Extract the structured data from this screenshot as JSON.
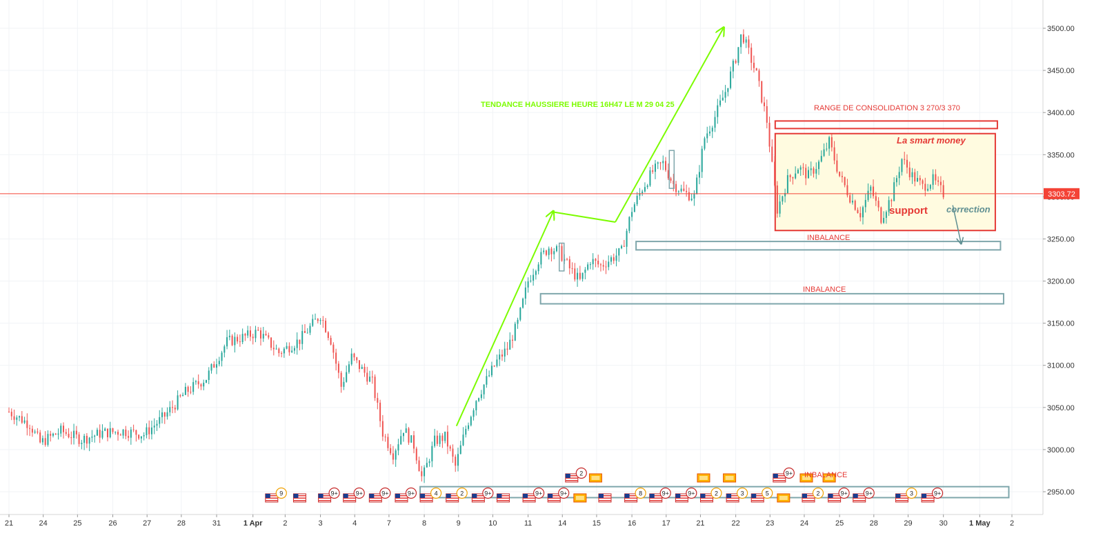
{
  "chart_data": {
    "type": "candlestick",
    "y_axis": {
      "min": 2920,
      "max": 3530,
      "ticks": [
        "3500.00",
        "3450.00",
        "3400.00",
        "3350.00",
        "3300.00",
        "3250.00",
        "3200.00",
        "3150.00",
        "3100.00",
        "3050.00",
        "3000.00",
        "2950.00"
      ],
      "tick_values": [
        3500,
        3450,
        3400,
        3350,
        3300,
        3250,
        3200,
        3150,
        3100,
        3050,
        3000,
        2950
      ]
    },
    "x_axis": {
      "labels": [
        {
          "t": 0.0,
          "text": "21"
        },
        {
          "t": 3.3,
          "text": "24"
        },
        {
          "t": 6.6,
          "text": "25"
        },
        {
          "t": 10.0,
          "text": "26"
        },
        {
          "t": 13.3,
          "text": "27"
        },
        {
          "t": 16.6,
          "text": "28"
        },
        {
          "t": 20.0,
          "text": "31"
        },
        {
          "t": 23.5,
          "text": "1 Apr"
        },
        {
          "t": 26.6,
          "text": "2"
        },
        {
          "t": 30.0,
          "text": "3"
        },
        {
          "t": 33.3,
          "text": "4"
        },
        {
          "t": 36.6,
          "text": "7"
        },
        {
          "t": 40.0,
          "text": "8"
        },
        {
          "t": 43.3,
          "text": "9"
        },
        {
          "t": 46.6,
          "text": "10"
        },
        {
          "t": 50.0,
          "text": "11"
        },
        {
          "t": 53.3,
          "text": "14"
        },
        {
          "t": 56.6,
          "text": "15"
        },
        {
          "t": 60.0,
          "text": "16"
        },
        {
          "t": 63.3,
          "text": "17"
        },
        {
          "t": 66.6,
          "text": "21"
        },
        {
          "t": 70.0,
          "text": "22"
        },
        {
          "t": 73.3,
          "text": "23"
        },
        {
          "t": 76.6,
          "text": "24"
        },
        {
          "t": 80.0,
          "text": "25"
        },
        {
          "t": 83.3,
          "text": "28"
        },
        {
          "t": 86.6,
          "text": "29"
        },
        {
          "t": 90.0,
          "text": "30"
        },
        {
          "t": 93.5,
          "text": "1 May"
        },
        {
          "t": 96.6,
          "text": "2"
        }
      ]
    },
    "price_path": [
      [
        0,
        3045
      ],
      [
        2,
        3030
      ],
      [
        3,
        3008
      ],
      [
        5,
        3022
      ],
      [
        7,
        3012
      ],
      [
        9,
        3020
      ],
      [
        11,
        3022
      ],
      [
        13,
        3018
      ],
      [
        15,
        3040
      ],
      [
        17,
        3068
      ],
      [
        19,
        3085
      ],
      [
        21,
        3128
      ],
      [
        23,
        3135
      ],
      [
        24,
        3140
      ],
      [
        26,
        3115
      ],
      [
        28,
        3130
      ],
      [
        30,
        3160
      ],
      [
        31,
        3130
      ],
      [
        32,
        3075
      ],
      [
        33,
        3110
      ],
      [
        35,
        3080
      ],
      [
        36,
        3020
      ],
      [
        37,
        2995
      ],
      [
        38,
        3025
      ],
      [
        39,
        3005
      ],
      [
        39.8,
        2965
      ],
      [
        41,
        3010
      ],
      [
        42,
        3015
      ],
      [
        43,
        2980
      ],
      [
        44,
        3025
      ],
      [
        45,
        3060
      ],
      [
        47,
        3105
      ],
      [
        48,
        3120
      ],
      [
        49,
        3150
      ],
      [
        50,
        3200
      ],
      [
        51,
        3225
      ],
      [
        52,
        3240
      ],
      [
        53,
        3235
      ],
      [
        54,
        3215
      ],
      [
        55,
        3200
      ],
      [
        56,
        3225
      ],
      [
        57,
        3218
      ],
      [
        59,
        3235
      ],
      [
        60,
        3285
      ],
      [
        61,
        3310
      ],
      [
        62,
        3330
      ],
      [
        63,
        3340
      ],
      [
        64,
        3315
      ],
      [
        65,
        3305
      ],
      [
        66,
        3300
      ],
      [
        67,
        3370
      ],
      [
        68,
        3395
      ],
      [
        69,
        3425
      ],
      [
        70,
        3465
      ],
      [
        70.6,
        3495
      ],
      [
        71,
        3480
      ],
      [
        72,
        3445
      ],
      [
        73,
        3390
      ],
      [
        73.6,
        3325
      ],
      [
        74,
        3285
      ],
      [
        75,
        3320
      ],
      [
        76,
        3335
      ],
      [
        77,
        3325
      ],
      [
        78,
        3340
      ],
      [
        79,
        3365
      ],
      [
        80,
        3325
      ],
      [
        81,
        3300
      ],
      [
        82,
        3280
      ],
      [
        83,
        3310
      ],
      [
        84,
        3275
      ],
      [
        85,
        3300
      ],
      [
        86,
        3345
      ],
      [
        87,
        3325
      ],
      [
        88,
        3312
      ],
      [
        89,
        3320
      ],
      [
        90,
        3303.72
      ]
    ],
    "current_price": {
      "value": 3303.72,
      "label": "3303.72"
    },
    "annotations": {
      "uptrend_text": "TENDANCE HAUSSIERE HEURE 16H47 LE M 29 04 25",
      "range_text": "RANGE DE CONSOLIDATION 3 270/3 370",
      "smart_money": "La smart money",
      "support": "support",
      "correction": "correction",
      "inbalance_1": "INBALANCE",
      "inbalance_2": "INBALANCE",
      "inbalance_3": "INBALANCE"
    },
    "zones": [
      {
        "kind": "range-box",
        "t1": 73.8,
        "t2": 95.0,
        "y1": 3260,
        "y2": 3375
      },
      {
        "kind": "range-top-bar",
        "t1": 73.8,
        "t2": 95.2,
        "y1": 3381,
        "y2": 3390
      },
      {
        "kind": "inbalance-1",
        "t1": 60.4,
        "t2": 95.5,
        "y1": 3237,
        "y2": 3247
      },
      {
        "kind": "inbalance-2",
        "t1": 51.2,
        "t2": 95.8,
        "y1": 3173,
        "y2": 3185
      },
      {
        "kind": "inbalance-3",
        "t1": 39.6,
        "t2": 96.3,
        "y1": 2943,
        "y2": 2956
      }
    ],
    "arrows": [
      {
        "kind": "up-1",
        "points": [
          [
            43.1,
            3028
          ],
          [
            52.4,
            3282
          ]
        ]
      },
      {
        "kind": "down-pullback",
        "points": [
          [
            52.4,
            3282
          ],
          [
            58.4,
            3270
          ]
        ]
      },
      {
        "kind": "up-2",
        "points": [
          [
            58.4,
            3270
          ],
          [
            68.8,
            3500
          ]
        ]
      },
      {
        "kind": "correction",
        "points": [
          [
            90.9,
            3290
          ],
          [
            91.7,
            3245
          ]
        ]
      }
    ],
    "event_markers": [
      {
        "t": 25.3,
        "row": "low",
        "icon": "us-flag",
        "badge": "9"
      },
      {
        "t": 28.0,
        "row": "low",
        "icon": "us-flag",
        "badge": ""
      },
      {
        "t": 30.4,
        "row": "low",
        "icon": "us-flag",
        "badge": "9+"
      },
      {
        "t": 32.8,
        "row": "low",
        "icon": "us-flag",
        "badge": "9+"
      },
      {
        "t": 35.3,
        "row": "low",
        "icon": "us-flag",
        "badge": "9+"
      },
      {
        "t": 37.8,
        "row": "low",
        "icon": "us-flag",
        "badge": "9+"
      },
      {
        "t": 40.2,
        "row": "low",
        "icon": "us-flag",
        "badge": "4"
      },
      {
        "t": 42.7,
        "row": "low",
        "icon": "us-flag",
        "badge": "2"
      },
      {
        "t": 45.2,
        "row": "low",
        "icon": "us-flag",
        "badge": "9+"
      },
      {
        "t": 47.6,
        "row": "low",
        "icon": "us-flag",
        "badge": ""
      },
      {
        "t": 50.1,
        "row": "low",
        "icon": "us-flag",
        "badge": "9+"
      },
      {
        "t": 52.5,
        "row": "low",
        "icon": "us-flag",
        "badge": "9+"
      },
      {
        "t": 55.0,
        "row": "low",
        "icon": "cn-flag",
        "badge": ""
      },
      {
        "t": 57.4,
        "row": "low",
        "icon": "us-flag",
        "badge": ""
      },
      {
        "t": 59.9,
        "row": "low",
        "icon": "us-flag",
        "badge": "8"
      },
      {
        "t": 62.3,
        "row": "low",
        "icon": "us-flag",
        "badge": "9+"
      },
      {
        "t": 64.8,
        "row": "low",
        "icon": "us-flag",
        "badge": "9+"
      },
      {
        "t": 67.2,
        "row": "low",
        "icon": "us-flag",
        "badge": "2"
      },
      {
        "t": 69.7,
        "row": "low",
        "icon": "us-flag",
        "badge": "3"
      },
      {
        "t": 72.1,
        "row": "low",
        "icon": "us-flag",
        "badge": "5"
      },
      {
        "t": 74.6,
        "row": "low",
        "icon": "cn-flag",
        "badge": ""
      },
      {
        "t": 77.0,
        "row": "low",
        "icon": "us-flag",
        "badge": "2"
      },
      {
        "t": 79.5,
        "row": "low",
        "icon": "us-flag",
        "badge": "9+"
      },
      {
        "t": 81.9,
        "row": "low",
        "icon": "us-flag",
        "badge": "9+"
      },
      {
        "t": 86.0,
        "row": "low",
        "icon": "us-flag",
        "badge": "3"
      },
      {
        "t": 88.5,
        "row": "low",
        "icon": "us-flag",
        "badge": "9+"
      },
      {
        "t": 54.2,
        "row": "high",
        "icon": "us-flag",
        "badge": "2"
      },
      {
        "t": 56.5,
        "row": "high",
        "icon": "cn-flag",
        "badge": ""
      },
      {
        "t": 66.9,
        "row": "high",
        "icon": "cn-flag",
        "badge": ""
      },
      {
        "t": 69.4,
        "row": "high",
        "icon": "cn-flag",
        "badge": ""
      },
      {
        "t": 74.2,
        "row": "high",
        "icon": "us-flag",
        "badge": "9+"
      },
      {
        "t": 76.8,
        "row": "high",
        "icon": "cn-flag",
        "badge": ""
      },
      {
        "t": 79.0,
        "row": "high",
        "icon": "cn-flag",
        "badge": ""
      }
    ],
    "colors": {
      "up": "#26a69a",
      "down": "#ef5350",
      "annotation_red": "#e53935",
      "green_arrow": "#7cfc00",
      "zone_stroke": "#7ea6ab",
      "range_fill": "#fffbe0",
      "price_line": "#f44336",
      "axis_text": "#333333",
      "grid": "#f1f3f6"
    }
  }
}
